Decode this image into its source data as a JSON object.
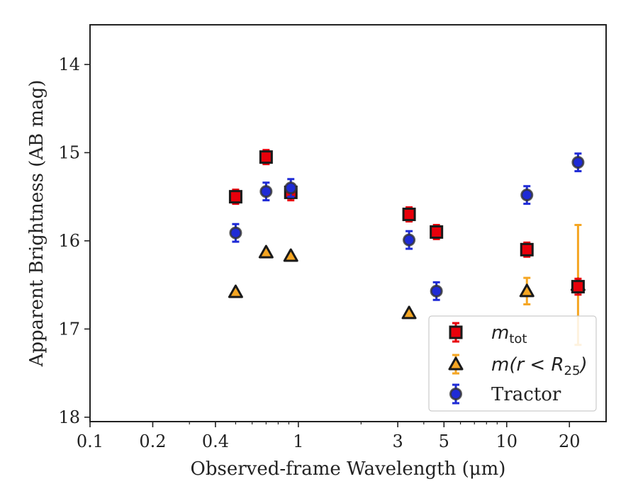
{
  "chart_data": {
    "type": "scatter",
    "title": "",
    "xlabel": "Observed-frame Wavelength (μm)",
    "ylabel": "Apparent Brightness (AB mag)",
    "xscale": "log",
    "xlim": [
      0.1,
      30
    ],
    "ylim": [
      18.05,
      13.55
    ],
    "y_inverted": true,
    "x_ticks": [
      0.1,
      0.2,
      0.4,
      1,
      3,
      5,
      10,
      20
    ],
    "x_tick_labels": [
      "0.1",
      "0.2",
      "0.4",
      "1",
      "3",
      "5",
      "10",
      "20"
    ],
    "y_ticks": [
      14,
      15,
      16,
      17,
      18
    ],
    "y_tick_labels": [
      "14",
      "15",
      "16",
      "17",
      "18"
    ],
    "grid": false,
    "legend_position": "lower-right",
    "series": [
      {
        "name": "m_tot",
        "label_main": "m",
        "label_sub": "tot",
        "marker": "square",
        "color": "#e8000b",
        "edge": "#1a1a1a",
        "ecolor": "#e8000b",
        "x": [
          0.5,
          0.7,
          0.92,
          3.4,
          4.6,
          12.5,
          22.0
        ],
        "y": [
          15.5,
          15.05,
          15.45,
          15.7,
          15.9,
          16.1,
          16.52
        ],
        "yerr": [
          0.08,
          0.08,
          0.09,
          0.08,
          0.08,
          0.08,
          0.09
        ]
      },
      {
        "name": "m(r<R25)",
        "label_main": "m(r < R",
        "label_sub": "25",
        "label_tail": ")",
        "marker": "triangle",
        "color": "#f5a623",
        "edge": "#1a1a1a",
        "ecolor": "#f5a623",
        "x": [
          0.5,
          0.7,
          0.92,
          3.4,
          12.5,
          22.0
        ],
        "y": [
          16.58,
          16.13,
          16.17,
          16.82,
          16.57,
          16.5
        ],
        "yerr": [
          0,
          0,
          0,
          0,
          0.15,
          0.68
        ]
      },
      {
        "name": "Tractor",
        "label_main": "Tractor",
        "marker": "circle",
        "color": "#1f2bd6",
        "edge": "#333333",
        "ecolor": "#1f2bd6",
        "x": [
          0.5,
          0.7,
          0.92,
          3.4,
          4.6,
          12.5,
          22.0
        ],
        "y": [
          15.91,
          15.44,
          15.4,
          15.99,
          16.57,
          15.48,
          15.11
        ],
        "yerr": [
          0.1,
          0.1,
          0.1,
          0.1,
          0.1,
          0.1,
          0.1
        ]
      }
    ]
  }
}
